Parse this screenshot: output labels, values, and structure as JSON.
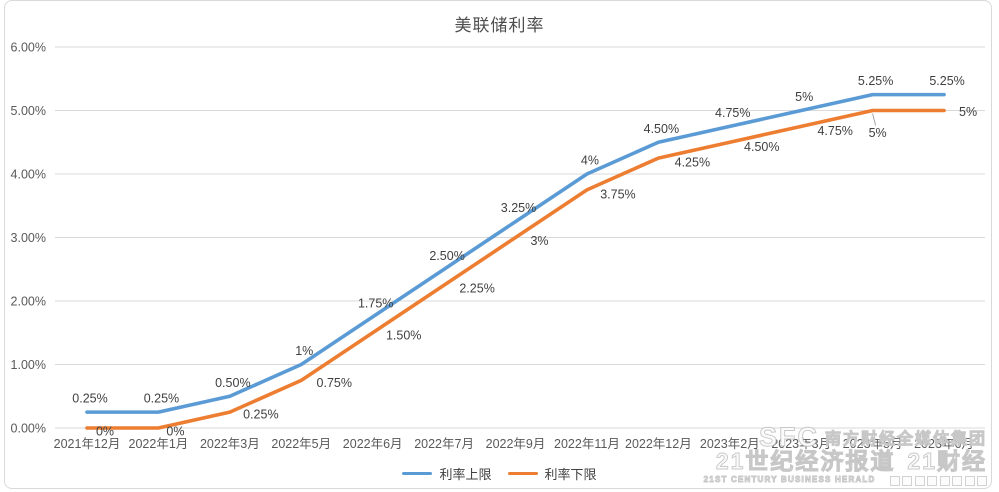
{
  "chart_data": {
    "type": "line",
    "title": "美联储利率",
    "categories": [
      "2021年12月",
      "2022年1月",
      "2022年3月",
      "2022年5月",
      "2022年6月",
      "2022年7月",
      "2022年9月",
      "2022年11月",
      "2022年12月",
      "2023年2月",
      "2023年3月",
      "2023年5月",
      "2023年6月"
    ],
    "series": [
      {
        "name": "利率上限",
        "color": "#5B9BD5",
        "values": [
          0.25,
          0.25,
          0.5,
          1,
          1.75,
          2.5,
          3.25,
          4,
          4.5,
          4.75,
          5,
          5.25,
          5.25
        ],
        "labels": [
          "0.25%",
          "0.25%",
          "0.50%",
          "1%",
          "1.75%",
          "2.50%",
          "3.25%",
          "4%",
          "4.50%",
          "4.75%",
          "5%",
          "5.25%",
          "5.25%"
        ]
      },
      {
        "name": "利率下限",
        "color": "#ED7D31",
        "values": [
          0,
          0,
          0.25,
          0.75,
          1.5,
          2.25,
          3,
          3.75,
          4.25,
          4.5,
          4.75,
          5,
          5
        ],
        "labels": [
          "0%",
          "0%",
          "0.25%",
          "0.75%",
          "1.50%",
          "2.25%",
          "3%",
          "3.75%",
          "4.25%",
          "4.50%",
          "4.75%",
          "5%",
          "5%"
        ]
      }
    ],
    "y_ticks": [
      "6.00%",
      "5.00%",
      "4.00%",
      "3.00%",
      "2.00%",
      "1.00%",
      "0.00%"
    ],
    "ylim": [
      0,
      6
    ],
    "xlabel": "",
    "ylabel": "",
    "grid": true,
    "legend_position": "bottom",
    "colors": {
      "grid": "#D9D9D9",
      "axis_text": "#595959",
      "data_label_text": "#404040",
      "leader_line": "#A6A6A6"
    }
  },
  "watermark": {
    "logo": "SFC",
    "group_name": "南方财经全媒体集团",
    "brand_1": "21世纪经济报道",
    "brand_2": "21财经",
    "english": "21ST CENTURY BUSINESS HERALD"
  }
}
